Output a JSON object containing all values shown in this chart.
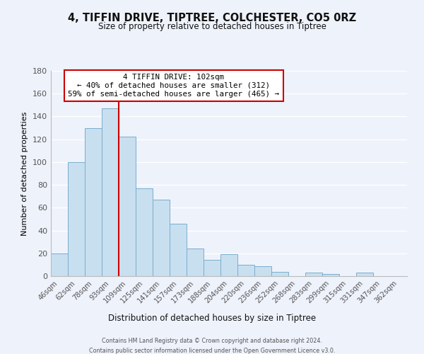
{
  "title": "4, TIFFIN DRIVE, TIPTREE, COLCHESTER, CO5 0RZ",
  "subtitle": "Size of property relative to detached houses in Tiptree",
  "xlabel": "Distribution of detached houses by size in Tiptree",
  "ylabel": "Number of detached properties",
  "bar_labels": [
    "46sqm",
    "62sqm",
    "78sqm",
    "93sqm",
    "109sqm",
    "125sqm",
    "141sqm",
    "157sqm",
    "173sqm",
    "188sqm",
    "204sqm",
    "220sqm",
    "236sqm",
    "252sqm",
    "268sqm",
    "283sqm",
    "299sqm",
    "315sqm",
    "331sqm",
    "347sqm",
    "362sqm"
  ],
  "bar_values": [
    20,
    100,
    130,
    147,
    122,
    77,
    67,
    46,
    24,
    14,
    19,
    10,
    9,
    4,
    0,
    3,
    2,
    0,
    3,
    0,
    0
  ],
  "bar_color": "#c8dff0",
  "bar_edge_color": "#7aaecc",
  "vline_x_idx": 3.5,
  "vline_color": "#cc0000",
  "annotation_title": "4 TIFFIN DRIVE: 102sqm",
  "annotation_line1": "← 40% of detached houses are smaller (312)",
  "annotation_line2": "59% of semi-detached houses are larger (465) →",
  "annotation_box_color": "#ffffff",
  "annotation_box_edge_color": "#cc0000",
  "ylim": [
    0,
    180
  ],
  "yticks": [
    0,
    20,
    40,
    60,
    80,
    100,
    120,
    140,
    160,
    180
  ],
  "footer1": "Contains HM Land Registry data © Crown copyright and database right 2024.",
  "footer2": "Contains public sector information licensed under the Open Government Licence v3.0.",
  "background_color": "#eef2fb",
  "grid_color": "#ffffff"
}
